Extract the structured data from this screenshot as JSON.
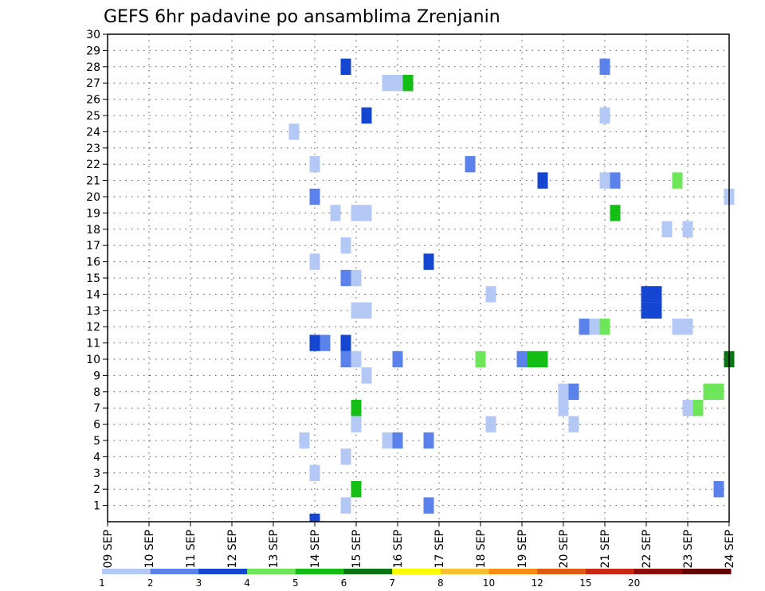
{
  "chart_data": {
    "type": "heatmap",
    "title": "GEFS 6hr padavine po ansamblima Zrenjanin",
    "xlabel": "",
    "ylabel": "",
    "x_tick_labels": [
      "09 SEP",
      "10 SEP",
      "11 SEP",
      "12 SEP",
      "13 SEP",
      "14 SEP",
      "15 SEP",
      "16 SEP",
      "17 SEP",
      "18 SEP",
      "19 SEP",
      "20 SEP",
      "21 SEP",
      "22 SEP",
      "23 SEP",
      "24 SEP"
    ],
    "y_tick_labels": [
      "1",
      "2",
      "3",
      "4",
      "5",
      "6",
      "7",
      "8",
      "9",
      "10",
      "11",
      "12",
      "13",
      "14",
      "15",
      "16",
      "17",
      "18",
      "19",
      "20",
      "21",
      "22",
      "23",
      "24",
      "25",
      "26",
      "27",
      "28",
      "29",
      "30"
    ],
    "xlim_days": [
      0,
      15
    ],
    "ylim": [
      0,
      30
    ],
    "grid": true,
    "legend": {
      "placement": "bottom",
      "bins": [
        {
          "label": "1",
          "color": "#b4c8f5"
        },
        {
          "label": "2",
          "color": "#5a82ea"
        },
        {
          "label": "3",
          "color": "#1446d2"
        },
        {
          "label": "4",
          "color": "#6ee65a"
        },
        {
          "label": "5",
          "color": "#14be14"
        },
        {
          "label": "6",
          "color": "#0a7314"
        },
        {
          "label": "7",
          "color": "#fafa00"
        },
        {
          "label": "8",
          "color": "#fabe32"
        },
        {
          "label": "10",
          "color": "#fa8c14"
        },
        {
          "label": "12",
          "color": "#e15a14"
        },
        {
          "label": "15",
          "color": "#c82814"
        },
        {
          "label": "20",
          "color": "#8c0a0a"
        },
        {
          "label": "",
          "color": "#640000"
        }
      ]
    },
    "cells": [
      {
        "member": 1,
        "day": 5.75,
        "cls": 0
      },
      {
        "member": 1,
        "day": 7.75,
        "cls": 1
      },
      {
        "member": 2,
        "day": 6.0,
        "cls": 4
      },
      {
        "member": 2,
        "day": 14.75,
        "cls": 1
      },
      {
        "member": 3,
        "day": 5.0,
        "cls": 0
      },
      {
        "member": 4,
        "day": 5.75,
        "cls": 0
      },
      {
        "member": 5,
        "day": 4.75,
        "cls": 0
      },
      {
        "member": 5,
        "day": 6.75,
        "cls": 0
      },
      {
        "member": 5,
        "day": 7.0,
        "cls": 1
      },
      {
        "member": 5,
        "day": 7.75,
        "cls": 1
      },
      {
        "member": 6,
        "day": 6.0,
        "cls": 0
      },
      {
        "member": 6,
        "day": 9.25,
        "cls": 0
      },
      {
        "member": 6,
        "day": 11.25,
        "cls": 0
      },
      {
        "member": 7,
        "day": 6.0,
        "cls": 4
      },
      {
        "member": 7,
        "day": 11.0,
        "cls": 0
      },
      {
        "member": 7,
        "day": 14.0,
        "cls": 0
      },
      {
        "member": 7,
        "day": 14.25,
        "cls": 3
      },
      {
        "member": 8,
        "day": 11.0,
        "cls": 0
      },
      {
        "member": 8,
        "day": 11.25,
        "cls": 1
      },
      {
        "member": 8,
        "day": 14.5,
        "cls": 3
      },
      {
        "member": 8,
        "day": 14.75,
        "cls": 3
      },
      {
        "member": 9,
        "day": 6.25,
        "cls": 0
      },
      {
        "member": 10,
        "day": 5.75,
        "cls": 1
      },
      {
        "member": 10,
        "day": 6.0,
        "cls": 0
      },
      {
        "member": 10,
        "day": 7.0,
        "cls": 1
      },
      {
        "member": 10,
        "day": 9.0,
        "cls": 3
      },
      {
        "member": 10,
        "day": 10.0,
        "cls": 1
      },
      {
        "member": 10,
        "day": 10.25,
        "cls": 4
      },
      {
        "member": 10,
        "day": 10.5,
        "cls": 4
      },
      {
        "member": 10,
        "day": 15.0,
        "cls": 5
      },
      {
        "member": 11,
        "day": 5.0,
        "cls": 2
      },
      {
        "member": 11,
        "day": 5.25,
        "cls": 1
      },
      {
        "member": 11,
        "day": 5.75,
        "cls": 2
      },
      {
        "member": 12,
        "day": 11.5,
        "cls": 1
      },
      {
        "member": 12,
        "day": 11.75,
        "cls": 0
      },
      {
        "member": 12,
        "day": 12.0,
        "cls": 3
      },
      {
        "member": 12,
        "day": 13.75,
        "cls": 0
      },
      {
        "member": 12,
        "day": 14.0,
        "cls": 0
      },
      {
        "member": 13,
        "day": 6.0,
        "cls": 0
      },
      {
        "member": 13,
        "day": 6.25,
        "cls": 0
      },
      {
        "member": 13,
        "day": 13.0,
        "cls": 2
      },
      {
        "member": 13,
        "day": 13.25,
        "cls": 2
      },
      {
        "member": 14,
        "day": 9.25,
        "cls": 0
      },
      {
        "member": 14,
        "day": 13.0,
        "cls": 2
      },
      {
        "member": 14,
        "day": 13.25,
        "cls": 2
      },
      {
        "member": 15,
        "day": 5.75,
        "cls": 1
      },
      {
        "member": 15,
        "day": 6.0,
        "cls": 0
      },
      {
        "member": 16,
        "day": 5.0,
        "cls": 0
      },
      {
        "member": 16,
        "day": 7.75,
        "cls": 2
      },
      {
        "member": 17,
        "day": 5.75,
        "cls": 0
      },
      {
        "member": 18,
        "day": 13.5,
        "cls": 0
      },
      {
        "member": 18,
        "day": 14.0,
        "cls": 0
      },
      {
        "member": 19,
        "day": 5.5,
        "cls": 0
      },
      {
        "member": 19,
        "day": 6.0,
        "cls": 0
      },
      {
        "member": 19,
        "day": 6.25,
        "cls": 0
      },
      {
        "member": 19,
        "day": 12.25,
        "cls": 4
      },
      {
        "member": 20,
        "day": 5.0,
        "cls": 1
      },
      {
        "member": 20,
        "day": 15.0,
        "cls": 0
      },
      {
        "member": 21,
        "day": 10.5,
        "cls": 2
      },
      {
        "member": 21,
        "day": 12.0,
        "cls": 0
      },
      {
        "member": 21,
        "day": 12.25,
        "cls": 1
      },
      {
        "member": 21,
        "day": 13.75,
        "cls": 3
      },
      {
        "member": 22,
        "day": 5.0,
        "cls": 0
      },
      {
        "member": 22,
        "day": 8.75,
        "cls": 1
      },
      {
        "member": 24,
        "day": 4.5,
        "cls": 0
      },
      {
        "member": 25,
        "day": 6.25,
        "cls": 2
      },
      {
        "member": 25,
        "day": 12.0,
        "cls": 0
      },
      {
        "member": 27,
        "day": 6.75,
        "cls": 0
      },
      {
        "member": 27,
        "day": 7.0,
        "cls": 0
      },
      {
        "member": 27,
        "day": 7.25,
        "cls": 4
      },
      {
        "member": 28,
        "day": 5.75,
        "cls": 2
      },
      {
        "member": 28,
        "day": 12.0,
        "cls": 1
      }
    ],
    "partial_cells": [
      {
        "member_bottom": 0,
        "day": 5.0,
        "cls": 2
      }
    ]
  }
}
